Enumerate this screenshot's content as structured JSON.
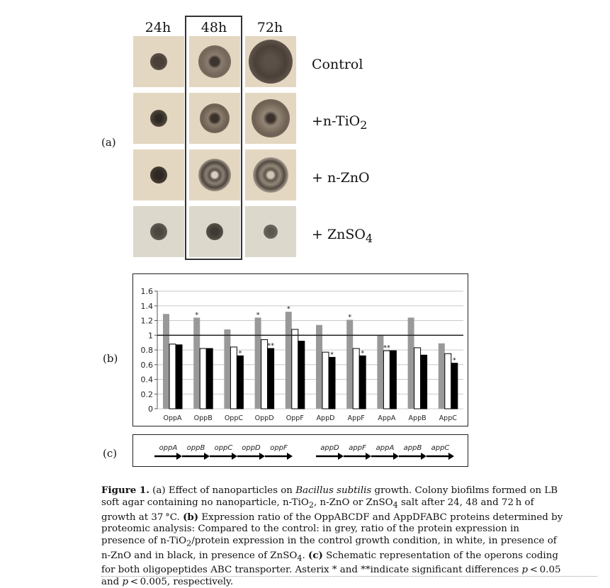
{
  "panel_labels": {
    "a": "(a)",
    "b": "(b)",
    "c": "(c)"
  },
  "time_labels": [
    "24h",
    "48h",
    "72h"
  ],
  "condition_labels": [
    {
      "main": "Control",
      "sub": ""
    },
    {
      "main": "+n-TiO",
      "sub": "2"
    },
    {
      "main": "+ n-ZnO",
      "sub": ""
    },
    {
      "main": "+ ZnSO",
      "sub": "4"
    }
  ],
  "chart_data": {
    "type": "bar",
    "categories": [
      "OppA",
      "OppB",
      "OppC",
      "OppD",
      "OppF",
      "AppD",
      "AppF",
      "AppA",
      "AppB",
      "AppC"
    ],
    "series": [
      {
        "color": "#999999",
        "values": [
          1.29,
          1.24,
          1.08,
          1.24,
          1.32,
          1.14,
          1.21,
          1.0,
          1.24,
          0.89
        ]
      },
      {
        "color": "#ffffff",
        "values": [
          0.88,
          0.82,
          0.84,
          0.94,
          1.08,
          0.77,
          0.82,
          0.79,
          0.83,
          0.75
        ]
      },
      {
        "color": "#000000",
        "values": [
          0.87,
          0.82,
          0.72,
          0.82,
          0.92,
          0.7,
          0.72,
          0.79,
          0.73,
          0.62
        ]
      }
    ],
    "asterisks": [
      {
        "category": 1,
        "series": 0,
        "text": "*"
      },
      {
        "category": 2,
        "series": 2,
        "text": "*"
      },
      {
        "category": 3,
        "series": 0,
        "text": "*"
      },
      {
        "category": 3,
        "series": 2,
        "text": "**"
      },
      {
        "category": 4,
        "series": 0,
        "text": "*"
      },
      {
        "category": 5,
        "series": 2,
        "text": "*"
      },
      {
        "category": 6,
        "series": 0,
        "text": "*"
      },
      {
        "category": 6,
        "series": 2,
        "text": "*"
      },
      {
        "category": 7,
        "series": 1,
        "text": "**"
      },
      {
        "category": 9,
        "series": 2,
        "text": "*"
      }
    ],
    "yticks": [
      "0",
      "0.2",
      "0.4",
      "0.6",
      "0.8",
      "1",
      "1.2",
      "1.4",
      "1.6"
    ],
    "ylim": [
      0,
      1.6
    ],
    "reference_line": 1,
    "grid": true
  },
  "operons": {
    "group1": [
      "oppA",
      "oppB",
      "oppC",
      "oppD",
      "oppF"
    ],
    "group2": [
      "appD",
      "appF",
      "appA",
      "appB",
      "appC"
    ]
  },
  "caption": {
    "label": "Figure 1.",
    "s1": " (a) Effect of nanoparticles on ",
    "species": "Bacillus subtilis",
    "s2": " growth. Colony biofilms formed on LB soft agar containing no nanoparticle, n-TiO",
    "s2sub": "2",
    "s3": ", n-ZnO or ZnSO",
    "s3sub": "4",
    "s4": " salt after 24, 48 and 72 h of growth at 37 °C. ",
    "b_label": "(b)",
    "s5": " Expression ratio of the OppABCDF and AppDFABC proteins determined by proteomic analysis: Compared to the control: in grey, ratio of the protein expression in presence of n-TiO",
    "s5sub": "2",
    "s6": "/protein expression in the control growth condition, in white, in presence of n-ZnO and in black, in presence of ZnSO",
    "s6sub": "4",
    "s7": ". ",
    "c_label": "(c)",
    "s8": " Schematic representation of the operons coding for both oligopeptides ABC transporter. Asterix * and **indicate significant differences ",
    "p1": "p",
    "s9": " < 0.05 and ",
    "p2": "p",
    "s10": " < 0.005, respectively."
  }
}
